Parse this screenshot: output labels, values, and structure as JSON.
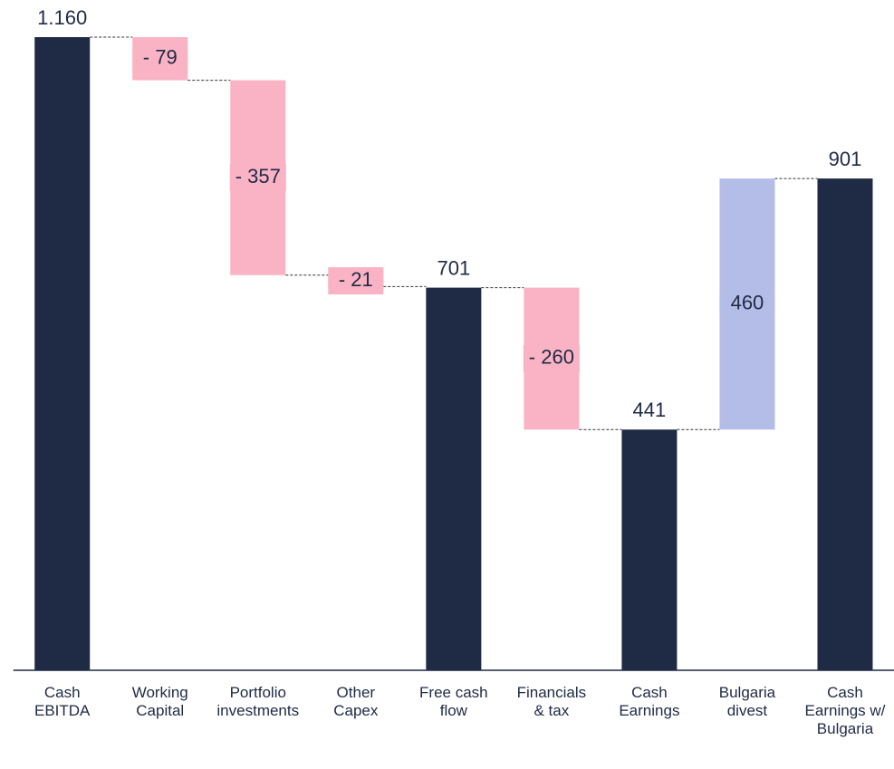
{
  "chart_data": {
    "type": "waterfall",
    "categories": [
      "Cash EBITDA",
      "Working Capital",
      "Portfolio investments",
      "Other Capex",
      "Free cash flow",
      "Financials & tax",
      "Cash Earnings",
      "Bulgaria divest",
      "Cash Earnings w/ Bulgaria"
    ],
    "values": [
      1160,
      -79,
      -357,
      -21,
      701,
      -260,
      441,
      460,
      901
    ],
    "value_labels": [
      "1.160",
      "- 79",
      "- 357",
      "- 21",
      "701",
      "- 260",
      "441",
      "460",
      "901"
    ],
    "measure": [
      "total",
      "relative",
      "relative",
      "relative",
      "total",
      "relative",
      "total",
      "relative",
      "total"
    ],
    "colors": [
      "#1f2a44",
      "#f9b3c4",
      "#f9b3c4",
      "#f9b3c4",
      "#1f2a44",
      "#f9b3c4",
      "#1f2a44",
      "#b4bce8",
      "#1f2a44"
    ]
  }
}
